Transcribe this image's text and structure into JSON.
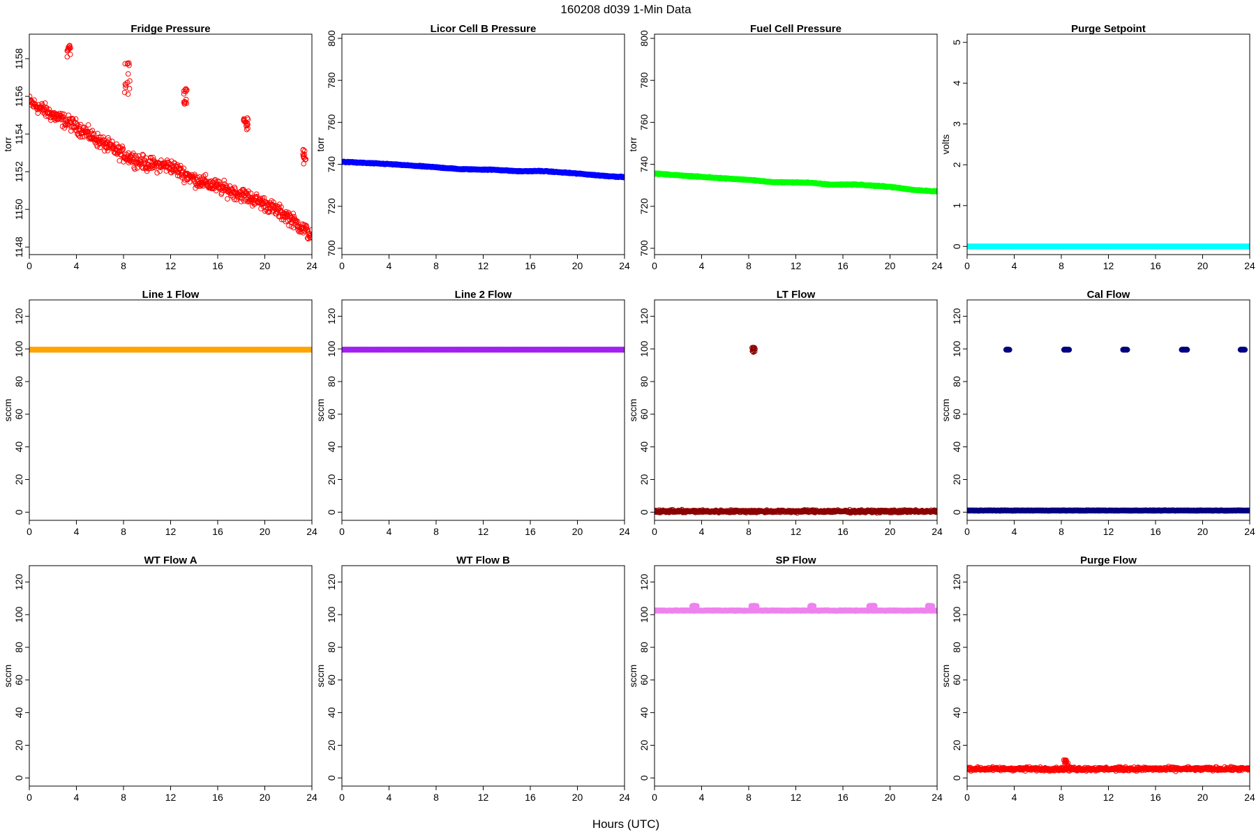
{
  "title": "160208   d039   1-Min Data",
  "xlabel": "Hours (UTC)",
  "chart_data": [
    {
      "type": "scatter",
      "title": "Fridge Pressure",
      "ylabel": "torr",
      "color": "#ff0000",
      "marker": "open",
      "xlim": [
        0,
        24
      ],
      "ylim": [
        1147.6,
        1159.3
      ],
      "yticks": [
        1148,
        1150,
        1152,
        1154,
        1156,
        1158
      ],
      "xticks": [
        0,
        4,
        8,
        12,
        16,
        20,
        24
      ],
      "series": [
        {
          "kind": "trend",
          "x": [
            0,
            2,
            4,
            6,
            8,
            10,
            12,
            14,
            16,
            18,
            20,
            22,
            24
          ],
          "y": [
            1155.7,
            1155.0,
            1154.4,
            1153.6,
            1152.9,
            1152.4,
            1152.3,
            1151.6,
            1151.2,
            1150.8,
            1150.3,
            1149.6,
            1148.6
          ],
          "noise": 0.55
        },
        {
          "kind": "cluster",
          "x": [
            3.2,
            3.5
          ],
          "y": [
            1158.1,
            1158.7
          ]
        },
        {
          "kind": "cluster",
          "x": [
            8.1,
            8.6
          ],
          "y": [
            1156.1,
            1157.8
          ]
        },
        {
          "kind": "cluster",
          "x": [
            13.1,
            13.4
          ],
          "y": [
            1155.5,
            1156.4
          ]
        },
        {
          "kind": "cluster",
          "x": [
            18.2,
            18.6
          ],
          "y": [
            1154.2,
            1154.9
          ]
        },
        {
          "kind": "cluster",
          "x": [
            23.2,
            23.5
          ],
          "y": [
            1152.4,
            1153.2
          ]
        }
      ]
    },
    {
      "type": "scatter",
      "title": "Licor Cell B Pressure",
      "ylabel": "torr",
      "color": "#0000ff",
      "marker": "filled",
      "xlim": [
        0,
        24
      ],
      "ylim": [
        697,
        802
      ],
      "yticks": [
        700,
        720,
        740,
        760,
        780,
        800
      ],
      "xticks": [
        0,
        4,
        8,
        12,
        16,
        20,
        24
      ],
      "series": [
        {
          "kind": "trend",
          "x": [
            0,
            4,
            8,
            10,
            13,
            15,
            17,
            20,
            22,
            24
          ],
          "y": [
            741.2,
            740.1,
            738.6,
            737.7,
            737.4,
            736.7,
            736.8,
            735.6,
            734.6,
            733.9
          ],
          "noise": 0.3
        }
      ]
    },
    {
      "type": "scatter",
      "title": "Fuel Cell Pressure",
      "ylabel": "torr",
      "color": "#00ff00",
      "marker": "filled",
      "xlim": [
        0,
        24
      ],
      "ylim": [
        697,
        802
      ],
      "yticks": [
        700,
        720,
        740,
        760,
        780,
        800
      ],
      "xticks": [
        0,
        4,
        8,
        12,
        16,
        20,
        24
      ],
      "series": [
        {
          "kind": "trend",
          "x": [
            0,
            4,
            8,
            10,
            13,
            15,
            17,
            20,
            22,
            24
          ],
          "y": [
            735.6,
            734.0,
            732.6,
            731.5,
            731.3,
            730.3,
            730.4,
            729.3,
            727.8,
            727.1
          ],
          "noise": 0.3
        }
      ]
    },
    {
      "type": "scatter",
      "title": "Purge Setpoint",
      "ylabel": "volts",
      "color": "#00ffff",
      "marker": "filled",
      "xlim": [
        0,
        24
      ],
      "ylim": [
        -0.2,
        5.2
      ],
      "yticks": [
        0,
        1,
        2,
        3,
        4,
        5
      ],
      "xticks": [
        0,
        4,
        8,
        12,
        16,
        20,
        24
      ],
      "series": [
        {
          "kind": "trend",
          "x": [
            0,
            24
          ],
          "y": [
            0,
            0
          ],
          "noise": 0
        }
      ]
    },
    {
      "type": "scatter",
      "title": "Line 1 Flow",
      "ylabel": "sccm",
      "color": "#ffa500",
      "marker": "filled",
      "xlim": [
        0,
        24
      ],
      "ylim": [
        -5,
        130
      ],
      "yticks": [
        0,
        20,
        40,
        60,
        80,
        100,
        120
      ],
      "xticks": [
        0,
        4,
        8,
        12,
        16,
        20,
        24
      ],
      "series": [
        {
          "kind": "trend",
          "x": [
            0,
            24
          ],
          "y": [
            99.5,
            99.5
          ],
          "noise": 0
        }
      ]
    },
    {
      "type": "scatter",
      "title": "Line 2 Flow",
      "ylabel": "sccm",
      "color": "#a020f0",
      "marker": "filled",
      "xlim": [
        0,
        24
      ],
      "ylim": [
        -5,
        130
      ],
      "yticks": [
        0,
        20,
        40,
        60,
        80,
        100,
        120
      ],
      "xticks": [
        0,
        4,
        8,
        12,
        16,
        20,
        24
      ],
      "series": [
        {
          "kind": "trend",
          "x": [
            0,
            24
          ],
          "y": [
            99.5,
            99.5
          ],
          "noise": 0
        }
      ]
    },
    {
      "type": "scatter",
      "title": "LT Flow",
      "ylabel": "sccm",
      "color": "#8b0000",
      "marker": "open",
      "xlim": [
        0,
        24
      ],
      "ylim": [
        -5,
        130
      ],
      "yticks": [
        0,
        20,
        40,
        60,
        80,
        100,
        120
      ],
      "xticks": [
        0,
        4,
        8,
        12,
        16,
        20,
        24
      ],
      "series": [
        {
          "kind": "trend",
          "x": [
            0,
            24
          ],
          "y": [
            0.5,
            0.5
          ],
          "noise": 1.2
        },
        {
          "kind": "cluster",
          "x": [
            8.2,
            8.6
          ],
          "y": [
            98,
            101
          ]
        }
      ]
    },
    {
      "type": "scatter",
      "title": "Cal Flow",
      "ylabel": "sccm",
      "color": "#000080",
      "marker": "filled",
      "xlim": [
        0,
        24
      ],
      "ylim": [
        -5,
        130
      ],
      "yticks": [
        0,
        20,
        40,
        60,
        80,
        100,
        120
      ],
      "xticks": [
        0,
        4,
        8,
        12,
        16,
        20,
        24
      ],
      "series": [
        {
          "kind": "trend",
          "x": [
            0,
            24
          ],
          "y": [
            1,
            1
          ],
          "noise": 0.2
        },
        {
          "kind": "cluster",
          "x": [
            3.2,
            3.6
          ],
          "y": [
            99.5,
            99.5
          ]
        },
        {
          "kind": "cluster",
          "x": [
            8.2,
            8.7
          ],
          "y": [
            99.5,
            99.5
          ]
        },
        {
          "kind": "cluster",
          "x": [
            13.2,
            13.6
          ],
          "y": [
            99.5,
            99.5
          ]
        },
        {
          "kind": "cluster",
          "x": [
            18.2,
            18.7
          ],
          "y": [
            99.5,
            99.5
          ]
        },
        {
          "kind": "cluster",
          "x": [
            23.2,
            23.6
          ],
          "y": [
            99.5,
            99.5
          ]
        }
      ]
    },
    {
      "type": "scatter",
      "title": "WT Flow A",
      "ylabel": "sccm",
      "color": "#000000",
      "marker": "open",
      "xlim": [
        0,
        24
      ],
      "ylim": [
        -5,
        130
      ],
      "yticks": [
        0,
        20,
        40,
        60,
        80,
        100,
        120
      ],
      "xticks": [
        0,
        4,
        8,
        12,
        16,
        20,
        24
      ],
      "series": []
    },
    {
      "type": "scatter",
      "title": "WT Flow B",
      "ylabel": "sccm",
      "color": "#000000",
      "marker": "open",
      "xlim": [
        0,
        24
      ],
      "ylim": [
        -5,
        130
      ],
      "yticks": [
        0,
        20,
        40,
        60,
        80,
        100,
        120
      ],
      "xticks": [
        0,
        4,
        8,
        12,
        16,
        20,
        24
      ],
      "series": []
    },
    {
      "type": "scatter",
      "title": "SP Flow",
      "ylabel": "sccm",
      "color": "#ee82ee",
      "marker": "filled",
      "xlim": [
        0,
        24
      ],
      "ylim": [
        -5,
        130
      ],
      "yticks": [
        0,
        20,
        40,
        60,
        80,
        100,
        120
      ],
      "xticks": [
        0,
        4,
        8,
        12,
        16,
        20,
        24
      ],
      "series": [
        {
          "kind": "trend",
          "x": [
            0,
            24
          ],
          "y": [
            102.5,
            102.5
          ],
          "noise": 0.3
        },
        {
          "kind": "cluster",
          "x": [
            3.2,
            3.6
          ],
          "y": [
            105,
            105.5
          ]
        },
        {
          "kind": "cluster",
          "x": [
            8.2,
            8.7
          ],
          "y": [
            105,
            105.5
          ]
        },
        {
          "kind": "cluster",
          "x": [
            13.2,
            13.6
          ],
          "y": [
            105,
            105.5
          ]
        },
        {
          "kind": "cluster",
          "x": [
            18.2,
            18.7
          ],
          "y": [
            105,
            105.5
          ]
        },
        {
          "kind": "cluster",
          "x": [
            23.2,
            23.6
          ],
          "y": [
            105,
            105.5
          ]
        }
      ]
    },
    {
      "type": "scatter",
      "title": "Purge Flow",
      "ylabel": "sccm",
      "color": "#ff0000",
      "marker": "open",
      "xlim": [
        0,
        24
      ],
      "ylim": [
        -5,
        130
      ],
      "yticks": [
        0,
        20,
        40,
        60,
        80,
        100,
        120
      ],
      "xticks": [
        0,
        4,
        8,
        12,
        16,
        20,
        24
      ],
      "series": [
        {
          "kind": "trend",
          "x": [
            0,
            24
          ],
          "y": [
            5.5,
            5.5
          ],
          "noise": 1.6
        },
        {
          "kind": "cluster",
          "x": [
            8.2,
            8.6
          ],
          "y": [
            8,
            11
          ]
        }
      ]
    }
  ]
}
